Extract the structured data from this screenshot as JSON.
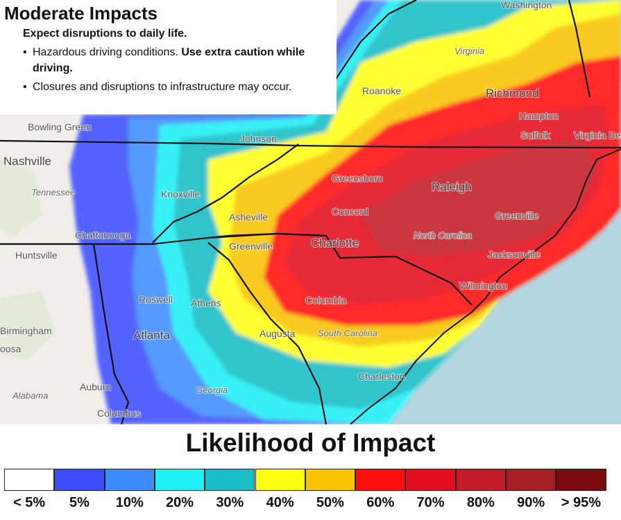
{
  "info": {
    "title": "Moderate Impacts",
    "subtitle": "Expect disruptions to daily life.",
    "bullet1_normal": "Hazardous driving conditions. ",
    "bullet1_bold": "Use extra caution while driving.",
    "bullet2": "Closures and disruptions to infrastructure may occur."
  },
  "legend": {
    "title": "Likelihood of Impact",
    "items": [
      {
        "label": "< 5%",
        "color": "#ffffff"
      },
      {
        "label": "5%",
        "color": "#3c4dff"
      },
      {
        "label": "10%",
        "color": "#3d8cff"
      },
      {
        "label": "20%",
        "color": "#1ff0f5"
      },
      {
        "label": "30%",
        "color": "#17bcc4"
      },
      {
        "label": "40%",
        "color": "#ffff12"
      },
      {
        "label": "50%",
        "color": "#f9c301"
      },
      {
        "label": "60%",
        "color": "#ff0e0e"
      },
      {
        "label": "70%",
        "color": "#e30d1d"
      },
      {
        "label": "80%",
        "color": "#c31d27"
      },
      {
        "label": "90%",
        "color": "#a61c23"
      },
      {
        "label": "> 95%",
        "color": "#7b0b10"
      }
    ]
  },
  "map": {
    "places": {
      "washington": "Washington",
      "virginia": "Virginia",
      "roanoke": "Roanoke",
      "richmond": "Richmond",
      "hampton": "Hampton",
      "suffolk": "Suffolk",
      "virginia_beach": "Virginia Beach",
      "bowling_green": "Bowling Green",
      "nashville": "Nashville",
      "tennessee": "Tennessee",
      "johnson": "Johnson",
      "knoxville": "Knoxville",
      "asheville": "Asheville",
      "greensboro": "Greensboro",
      "raleigh": "Raleigh",
      "concord": "Concord",
      "charlotte": "Charlotte",
      "north_carolina": "North Carolina",
      "greenville_nc": "Greenville",
      "greenville_sc": "Greenville",
      "jacksonville": "Jacksonville",
      "wilmington": "Wilmington",
      "chattanooga": "Chattanooga",
      "huntsville": "Huntsville",
      "roswell": "Roswell",
      "athens": "Athens",
      "columbia": "Columbia",
      "birmingham": "Birmingham",
      "hoosa": "oosa",
      "atlanta": "Atlanta",
      "augusta": "Augusta",
      "south_carolina": "South Carolina",
      "charleston": "Charleston",
      "auburn": "Auburn",
      "alabama": "Alabama",
      "georgia": "Georgia",
      "columbus": "Columbus"
    }
  }
}
